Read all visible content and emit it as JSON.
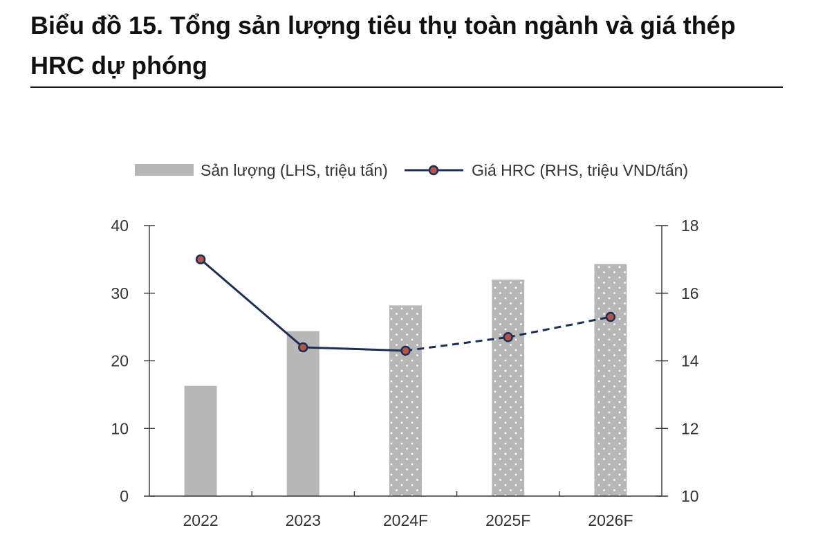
{
  "chart_data": {
    "type": "bar",
    "title": "Biểu đồ 15. Tổng sản lượng tiêu thụ toàn ngành và giá thép HRC dự phóng",
    "categories": [
      "2022",
      "2023",
      "2024F",
      "2025F",
      "2026F"
    ],
    "forecast": [
      false,
      false,
      true,
      true,
      true
    ],
    "series": [
      {
        "name": "Sản lượng (LHS, triệu tấn)",
        "type": "bar",
        "axis": "left",
        "values": [
          16.3,
          24.4,
          28.2,
          32.0,
          34.3
        ],
        "color": "#b7b7b7"
      },
      {
        "name": "Giá HRC (RHS, triệu VND/tấn)",
        "type": "line",
        "axis": "right",
        "values": [
          17.0,
          14.4,
          14.3,
          14.7,
          15.3
        ],
        "color": "#1b2f55",
        "marker_color": "#b5524c"
      }
    ],
    "y_left": {
      "min": 0,
      "max": 40,
      "ticks": [
        0,
        10,
        20,
        30,
        40
      ]
    },
    "y_right": {
      "min": 10,
      "max": 18,
      "ticks": [
        10,
        12,
        14,
        16,
        18
      ]
    },
    "grid": false,
    "legend": "top-center"
  }
}
